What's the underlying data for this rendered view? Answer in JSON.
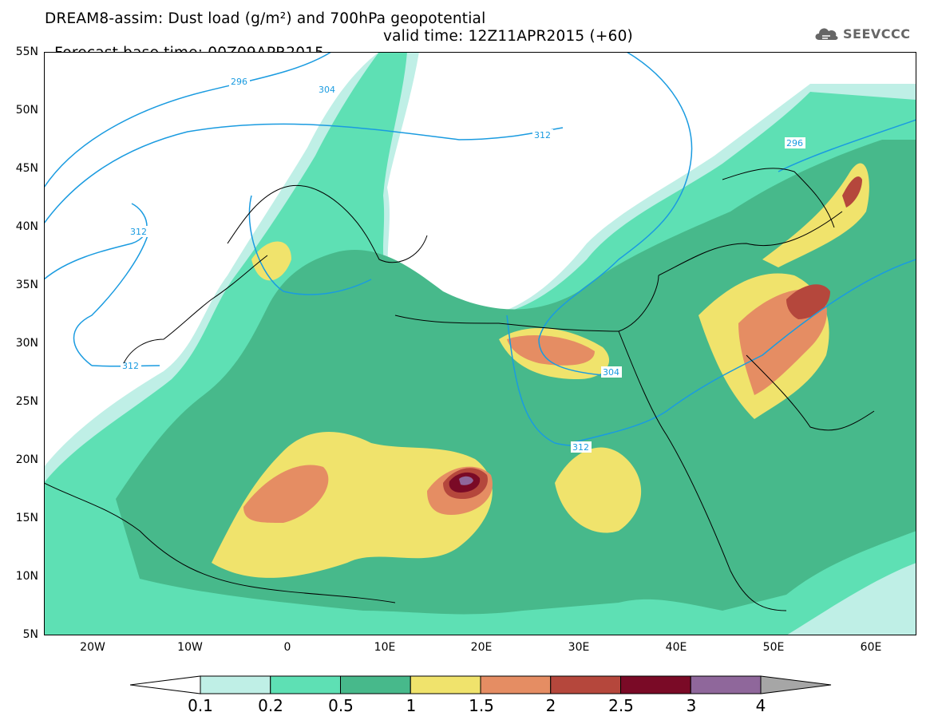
{
  "header": {
    "line1": "DREAM8-assim: Dust load (g/m²) and 700hPa geopotential",
    "line2_left": "Forecast base time: 00Z09APR2015",
    "line2_right": "valid time: 12Z11APR2015 (+60)"
  },
  "logo": {
    "text": "SEEVCCC",
    "icon": "cloud-icon",
    "color": "#666666"
  },
  "map": {
    "lat_labels": [
      "55N",
      "50N",
      "45N",
      "40N",
      "35N",
      "30N",
      "25N",
      "20N",
      "15N",
      "10N",
      "5N"
    ],
    "lon_labels": [
      "20W",
      "10W",
      "0",
      "10E",
      "20E",
      "30E",
      "40E",
      "50E",
      "60E"
    ],
    "contour_labels": [
      "296",
      "304",
      "312",
      "296",
      "312",
      "312",
      "304",
      "312"
    ],
    "background_color": "#ffffff"
  },
  "colorbar": {
    "labels": [
      "0.1",
      "0.2",
      "0.5",
      "1",
      "1.5",
      "2",
      "2.5",
      "3",
      "4"
    ],
    "colors": [
      "#bfefe6",
      "#5ee0b4",
      "#47b98b",
      "#f0e36c",
      "#e58d63",
      "#b5473c",
      "#7a0a26",
      "#8f679b"
    ],
    "arrow_low_color": "#ffffff",
    "arrow_high_color": "#a6a6a6"
  },
  "contour_color": "#1a9be0"
}
